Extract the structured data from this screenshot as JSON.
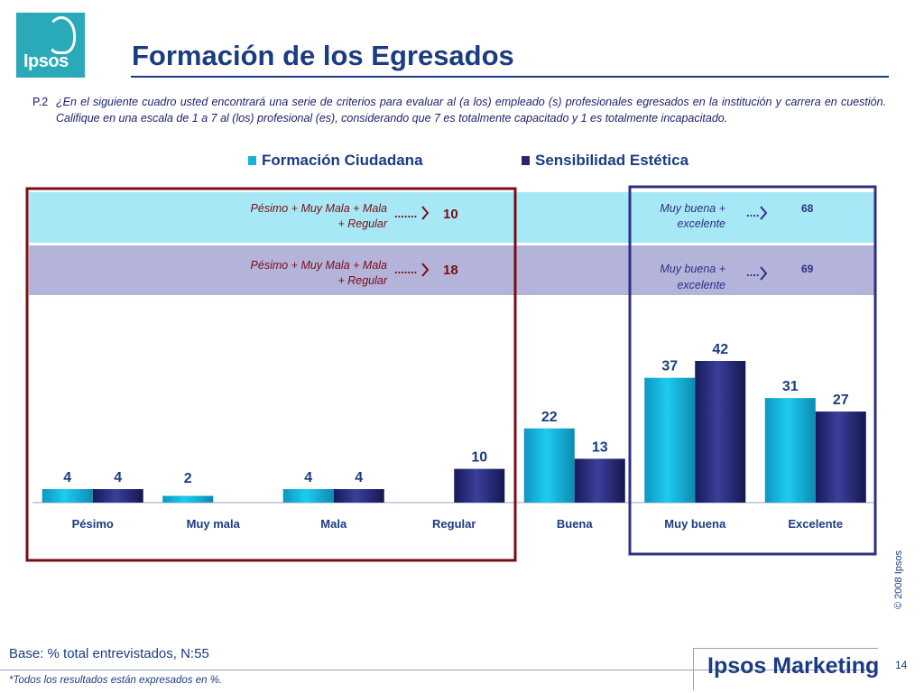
{
  "header": {
    "logo_text": "Ipsos",
    "title": "Formación de los Egresados"
  },
  "question": {
    "number": "P.2",
    "text": "¿En el siguiente cuadro usted encontrará una serie de criterios para evaluar al (a los) empleado (s) profesionales egresados en la institución y carrera en cuestión. Califique en una escala de 1 a 7 al (los) profesional (es), considerando que 7 es totalmente capacitado y 1 es totalmente incapacitado."
  },
  "colors": {
    "series1": "#13b3da",
    "series2": "#24276f",
    "band1": "#a7e8f6",
    "band2": "#b4b3da",
    "left_frame": "#7b0d14",
    "right_frame": "#2e2f85",
    "title": "#1b3c82"
  },
  "summary": {
    "left": {
      "label_line1": "Pésimo + Muy Mala + Mala",
      "label_line2": "+ Regular",
      "dots": ".......",
      "value_series1": "10",
      "value_series2": "18"
    },
    "right": {
      "label_line1": "Muy buena +",
      "label_line2": "excelente",
      "dots": "....",
      "value_series1": "68",
      "value_series2": "69"
    }
  },
  "chart_data": {
    "type": "bar",
    "categories": [
      "Pésimo",
      "Muy mala",
      "Mala",
      "Regular",
      "Buena",
      "Muy buena",
      "Excelente"
    ],
    "series": [
      {
        "name": "Formación Ciudadana",
        "values": [
          4,
          2,
          4,
          null,
          22,
          37,
          31
        ]
      },
      {
        "name": "Sensibilidad Estética",
        "values": [
          4,
          null,
          4,
          10,
          13,
          42,
          27
        ]
      }
    ],
    "ylim": [
      0,
      42
    ],
    "grid": false,
    "legend": "top"
  },
  "footer": {
    "base": "Base: % total entrevistados, N:55",
    "note": "*Todos los resultados están expresados en %.",
    "copyright": "© 2008 Ipsos",
    "brand": "Ipsos Marketing",
    "page": "14"
  }
}
